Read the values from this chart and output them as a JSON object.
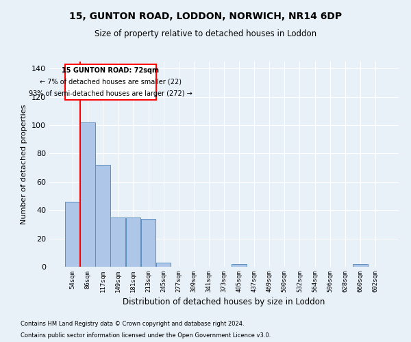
{
  "title1": "15, GUNTON ROAD, LODDON, NORWICH, NR14 6DP",
  "title2": "Size of property relative to detached houses in Loddon",
  "xlabel": "Distribution of detached houses by size in Loddon",
  "ylabel": "Number of detached properties",
  "footer1": "Contains HM Land Registry data © Crown copyright and database right 2024.",
  "footer2": "Contains public sector information licensed under the Open Government Licence v3.0.",
  "categories": [
    "54sqm",
    "86sqm",
    "117sqm",
    "149sqm",
    "181sqm",
    "213sqm",
    "245sqm",
    "277sqm",
    "309sqm",
    "341sqm",
    "373sqm",
    "405sqm",
    "437sqm",
    "469sqm",
    "500sqm",
    "532sqm",
    "564sqm",
    "596sqm",
    "628sqm",
    "660sqm",
    "692sqm"
  ],
  "values": [
    46,
    102,
    72,
    35,
    35,
    34,
    3,
    0,
    0,
    0,
    0,
    2,
    0,
    0,
    0,
    0,
    0,
    0,
    0,
    2,
    0
  ],
  "bar_color": "#aec6e8",
  "bar_edge_color": "#5a8fc0",
  "annotation_text1": "15 GUNTON ROAD: 72sqm",
  "annotation_text2": "← 7% of detached houses are smaller (22)",
  "annotation_text3": "93% of semi-detached houses are larger (272) →",
  "ylim": [
    0,
    145
  ],
  "yticks": [
    0,
    20,
    40,
    60,
    80,
    100,
    120,
    140
  ],
  "bg_color": "#e8f0f8",
  "grid_color": "#ffffff"
}
